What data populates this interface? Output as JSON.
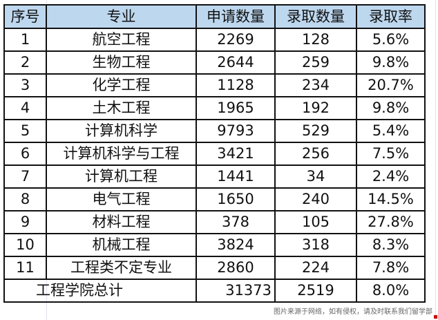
{
  "table": {
    "headers": [
      "序号",
      "专业",
      "申请数量",
      "录取数量",
      "录取率"
    ],
    "rows": [
      [
        "1",
        "航空工程",
        "2269",
        "128",
        "5.6%"
      ],
      [
        "2",
        "生物工程",
        "2644",
        "259",
        "9.8%"
      ],
      [
        "3",
        "化学工程",
        "1128",
        "234",
        "20.7%"
      ],
      [
        "4",
        "土木工程",
        "1965",
        "192",
        "9.8%"
      ],
      [
        "5",
        "计算机科学",
        "9793",
        "529",
        "5.4%"
      ],
      [
        "6",
        "计算机科学与工程",
        "3421",
        "256",
        "7.5%"
      ],
      [
        "7",
        "计算机工程",
        "1441",
        "34",
        "2.4%"
      ],
      [
        "8",
        "电气工程",
        "1650",
        "240",
        "14.5%"
      ],
      [
        "9",
        "材料工程",
        "378",
        "105",
        "27.8%"
      ],
      [
        "10",
        "机械工程",
        "3824",
        "318",
        "8.3%"
      ],
      [
        "11",
        "工程类不定专业",
        "2860",
        "224",
        "7.8%"
      ]
    ],
    "total": {
      "label": "工程学院总计",
      "applications": "31373",
      "admitted": "2519",
      "rate": "8.0%"
    },
    "header_color": "#bdd7ee"
  },
  "watermark": "图片来源于网络，如有侵权，请及时联系我们留学部"
}
